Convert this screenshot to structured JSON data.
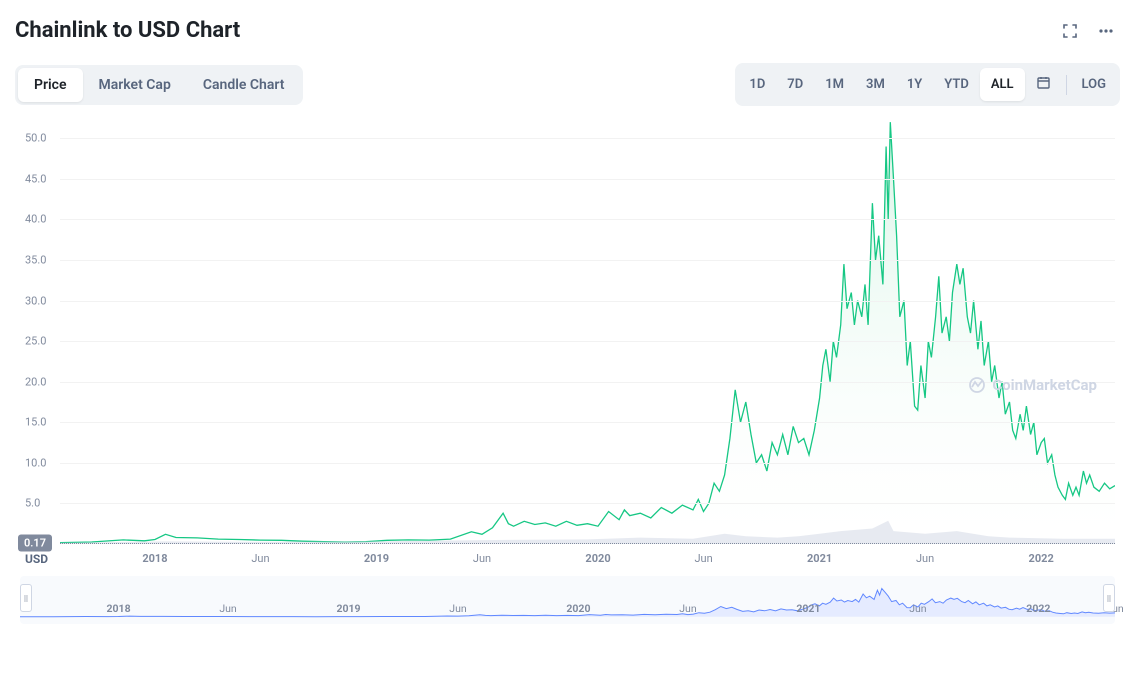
{
  "title": "Chainlink to USD Chart",
  "tabs": {
    "items": [
      "Price",
      "Market Cap",
      "Candle Chart"
    ],
    "active_index": 0
  },
  "ranges": {
    "items": [
      "1D",
      "7D",
      "1M",
      "3M",
      "1Y",
      "YTD",
      "ALL"
    ],
    "active_index": 6,
    "log_label": "LOG"
  },
  "currency_label": "USD",
  "watermark": "CoinMarketCap",
  "price_chart": {
    "type": "area",
    "line_color": "#16c784",
    "fill_top_color": "#d9f5e7",
    "fill_bottom_color": "#ffffff",
    "line_width": 1.3,
    "background_color": "#ffffff",
    "grid_color": "#f2f2f2",
    "y_axis": {
      "ticks": [
        5.0,
        10.0,
        15.0,
        20.0,
        25.0,
        30.0,
        35.0,
        40.0,
        45.0,
        50.0
      ],
      "tick_labels": [
        "5.0",
        "10.0",
        "15.0",
        "20.0",
        "25.0",
        "30.0",
        "35.0",
        "40.0",
        "45.0",
        "50.0"
      ],
      "min": 0,
      "max": 53,
      "label_color": "#808a9d",
      "label_fontsize": 11
    },
    "x_axis": {
      "tick_positions": [
        0.09,
        0.19,
        0.3,
        0.4,
        0.51,
        0.61,
        0.72,
        0.82,
        0.93
      ],
      "tick_labels": [
        "2018",
        "Jun",
        "2019",
        "Jun",
        "2020",
        "Jun",
        "2021",
        "Jun",
        "2022"
      ],
      "label_color": "#808a9d",
      "label_fontsize": 11
    },
    "current_price_badge": {
      "value": "0.17",
      "badge_color": "#808a9d",
      "text_color": "#ffffff",
      "y_value": 0.17
    },
    "series": [
      [
        0.0,
        0.17
      ],
      [
        0.03,
        0.25
      ],
      [
        0.06,
        0.5
      ],
      [
        0.08,
        0.4
      ],
      [
        0.09,
        0.55
      ],
      [
        0.1,
        1.2
      ],
      [
        0.11,
        0.8
      ],
      [
        0.13,
        0.75
      ],
      [
        0.15,
        0.6
      ],
      [
        0.17,
        0.55
      ],
      [
        0.19,
        0.48
      ],
      [
        0.21,
        0.45
      ],
      [
        0.23,
        0.35
      ],
      [
        0.25,
        0.28
      ],
      [
        0.27,
        0.25
      ],
      [
        0.29,
        0.3
      ],
      [
        0.31,
        0.45
      ],
      [
        0.33,
        0.5
      ],
      [
        0.35,
        0.48
      ],
      [
        0.37,
        0.6
      ],
      [
        0.39,
        1.5
      ],
      [
        0.4,
        1.2
      ],
      [
        0.41,
        2.0
      ],
      [
        0.42,
        3.8
      ],
      [
        0.425,
        2.5
      ],
      [
        0.43,
        2.2
      ],
      [
        0.44,
        2.8
      ],
      [
        0.45,
        2.4
      ],
      [
        0.46,
        2.6
      ],
      [
        0.47,
        2.2
      ],
      [
        0.48,
        2.8
      ],
      [
        0.49,
        2.3
      ],
      [
        0.5,
        2.5
      ],
      [
        0.51,
        2.2
      ],
      [
        0.52,
        4.0
      ],
      [
        0.53,
        3.0
      ],
      [
        0.535,
        4.2
      ],
      [
        0.54,
        3.5
      ],
      [
        0.55,
        3.8
      ],
      [
        0.56,
        3.2
      ],
      [
        0.57,
        4.5
      ],
      [
        0.58,
        3.8
      ],
      [
        0.59,
        4.8
      ],
      [
        0.6,
        4.2
      ],
      [
        0.605,
        5.5
      ],
      [
        0.61,
        4.0
      ],
      [
        0.615,
        5.0
      ],
      [
        0.62,
        7.5
      ],
      [
        0.625,
        6.5
      ],
      [
        0.63,
        8.5
      ],
      [
        0.635,
        13.0
      ],
      [
        0.64,
        19.0
      ],
      [
        0.645,
        15.0
      ],
      [
        0.65,
        17.5
      ],
      [
        0.655,
        13.5
      ],
      [
        0.66,
        10.0
      ],
      [
        0.665,
        11.0
      ],
      [
        0.67,
        9.0
      ],
      [
        0.675,
        12.5
      ],
      [
        0.68,
        11.0
      ],
      [
        0.685,
        13.5
      ],
      [
        0.69,
        11.0
      ],
      [
        0.695,
        14.5
      ],
      [
        0.7,
        12.5
      ],
      [
        0.705,
        13.0
      ],
      [
        0.71,
        11.0
      ],
      [
        0.715,
        14.0
      ],
      [
        0.72,
        18.0
      ],
      [
        0.723,
        22.0
      ],
      [
        0.726,
        24.0
      ],
      [
        0.73,
        20.0
      ],
      [
        0.733,
        25.0
      ],
      [
        0.736,
        23.0
      ],
      [
        0.74,
        27.0
      ],
      [
        0.743,
        34.5
      ],
      [
        0.746,
        29.0
      ],
      [
        0.75,
        31.0
      ],
      [
        0.753,
        27.0
      ],
      [
        0.756,
        30.0
      ],
      [
        0.76,
        28.0
      ],
      [
        0.763,
        32.0
      ],
      [
        0.766,
        27.0
      ],
      [
        0.77,
        42.0
      ],
      [
        0.773,
        35.0
      ],
      [
        0.776,
        38.0
      ],
      [
        0.78,
        32.0
      ],
      [
        0.783,
        49.0
      ],
      [
        0.785,
        40.0
      ],
      [
        0.787,
        52.0
      ],
      [
        0.79,
        45.0
      ],
      [
        0.793,
        38.0
      ],
      [
        0.796,
        28.0
      ],
      [
        0.8,
        30.0
      ],
      [
        0.803,
        22.0
      ],
      [
        0.806,
        25.0
      ],
      [
        0.81,
        17.0
      ],
      [
        0.813,
        16.5
      ],
      [
        0.816,
        22.0
      ],
      [
        0.82,
        18.0
      ],
      [
        0.823,
        25.0
      ],
      [
        0.826,
        23.0
      ],
      [
        0.83,
        28.0
      ],
      [
        0.833,
        33.0
      ],
      [
        0.836,
        26.0
      ],
      [
        0.84,
        28.0
      ],
      [
        0.843,
        25.0
      ],
      [
        0.846,
        31.0
      ],
      [
        0.85,
        34.5
      ],
      [
        0.853,
        32.0
      ],
      [
        0.856,
        34.0
      ],
      [
        0.86,
        28.0
      ],
      [
        0.863,
        26.0
      ],
      [
        0.866,
        30.0
      ],
      [
        0.87,
        24.0
      ],
      [
        0.873,
        27.5
      ],
      [
        0.876,
        22.0
      ],
      [
        0.88,
        25.0
      ],
      [
        0.883,
        20.0
      ],
      [
        0.886,
        22.0
      ],
      [
        0.89,
        18.0
      ],
      [
        0.893,
        20.0
      ],
      [
        0.896,
        16.0
      ],
      [
        0.9,
        17.5
      ],
      [
        0.903,
        14.0
      ],
      [
        0.906,
        13.0
      ],
      [
        0.91,
        16.0
      ],
      [
        0.913,
        14.0
      ],
      [
        0.916,
        17.0
      ],
      [
        0.92,
        13.5
      ],
      [
        0.923,
        15.0
      ],
      [
        0.926,
        11.0
      ],
      [
        0.93,
        12.5
      ],
      [
        0.933,
        13.0
      ],
      [
        0.936,
        10.0
      ],
      [
        0.94,
        11.0
      ],
      [
        0.943,
        8.5
      ],
      [
        0.946,
        7.0
      ],
      [
        0.95,
        6.0
      ],
      [
        0.953,
        5.5
      ],
      [
        0.956,
        7.5
      ],
      [
        0.96,
        6.0
      ],
      [
        0.963,
        7.0
      ],
      [
        0.966,
        6.0
      ],
      [
        0.97,
        9.0
      ],
      [
        0.973,
        7.5
      ],
      [
        0.976,
        8.5
      ],
      [
        0.98,
        7.0
      ],
      [
        0.985,
        6.5
      ],
      [
        0.99,
        7.5
      ],
      [
        0.995,
        6.8
      ],
      [
        1.0,
        7.2
      ]
    ]
  },
  "volume_chart": {
    "color": "#cfd6e4",
    "height_ratio": 0.06,
    "series": [
      [
        0.0,
        0.005
      ],
      [
        0.1,
        0.01
      ],
      [
        0.2,
        0.008
      ],
      [
        0.3,
        0.01
      ],
      [
        0.4,
        0.015
      ],
      [
        0.5,
        0.018
      ],
      [
        0.55,
        0.025
      ],
      [
        0.6,
        0.02
      ],
      [
        0.63,
        0.04
      ],
      [
        0.65,
        0.03
      ],
      [
        0.68,
        0.025
      ],
      [
        0.7,
        0.03
      ],
      [
        0.72,
        0.04
      ],
      [
        0.74,
        0.05
      ],
      [
        0.77,
        0.06
      ],
      [
        0.785,
        0.09
      ],
      [
        0.79,
        0.05
      ],
      [
        0.82,
        0.04
      ],
      [
        0.85,
        0.05
      ],
      [
        0.88,
        0.03
      ],
      [
        0.9,
        0.025
      ],
      [
        0.95,
        0.02
      ],
      [
        1.0,
        0.02
      ]
    ]
  },
  "minimap": {
    "line_color": "#6188ff",
    "fill_color": "#e5ebff",
    "background_color": "#f8fafd",
    "handle_color": "#ffffff",
    "handle_border": "#cfd6e4",
    "x_ticks": [
      "2018",
      "Jun",
      "2019",
      "Jun",
      "2020",
      "Jun",
      "2021",
      "Jun",
      "2022",
      "Jun"
    ],
    "x_positions": [
      0.09,
      0.19,
      0.3,
      0.4,
      0.51,
      0.61,
      0.72,
      0.82,
      0.93,
      1.0
    ]
  }
}
